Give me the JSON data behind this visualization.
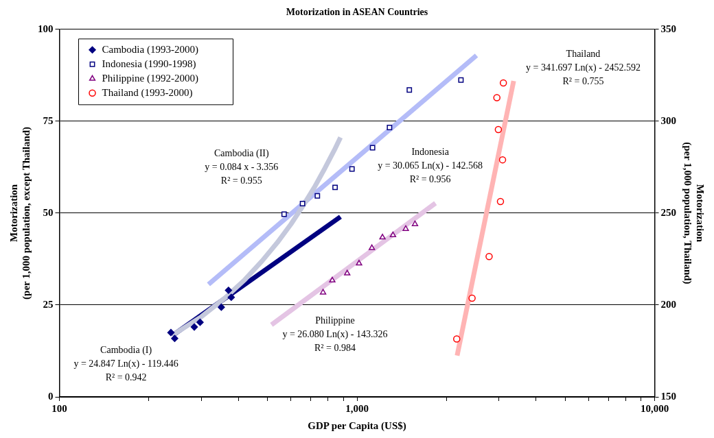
{
  "chart_data": {
    "type": "scatter",
    "title": "Motorization in ASEAN Countries",
    "xlabel": "GDP per Capita (US$)",
    "ylabel": "Motorization\n(per 1,000 population, except Thailand)",
    "y2label": "Motorization\n(per 1,000 population, Thailand)",
    "log": "x",
    "grid": "y",
    "legend": "top left",
    "xlim": [
      100,
      10000
    ],
    "xticks": [
      {
        "value": 100,
        "label": "100"
      },
      {
        "value": 200,
        "label": null
      },
      {
        "value": 300,
        "label": null
      },
      {
        "value": 400,
        "label": null
      },
      {
        "value": 500,
        "label": null
      },
      {
        "value": 600,
        "label": null
      },
      {
        "value": 700,
        "label": null
      },
      {
        "value": 800,
        "label": null
      },
      {
        "value": 900,
        "label": null
      },
      {
        "value": 1000,
        "label": "1,000"
      },
      {
        "value": 2000,
        "label": null
      },
      {
        "value": 3000,
        "label": null
      },
      {
        "value": 4000,
        "label": null
      },
      {
        "value": 5000,
        "label": null
      },
      {
        "value": 6000,
        "label": null
      },
      {
        "value": 7000,
        "label": null
      },
      {
        "value": 8000,
        "label": null
      },
      {
        "value": 9000,
        "label": null
      },
      {
        "value": 10000,
        "label": "10,000"
      }
    ],
    "ylim": [
      0,
      100
    ],
    "yticks": [
      0,
      25,
      50,
      75,
      100
    ],
    "y2lim": [
      150,
      350
    ],
    "y2ticks": [
      150,
      200,
      250,
      300,
      350
    ],
    "series": [
      {
        "type": "line",
        "color": "#c4c8dc",
        "marker": "none",
        "x": [
          240,
          300,
          360,
          420,
          480,
          540,
          600,
          660,
          720,
          780,
          840,
          880
        ],
        "values": [
          16.8,
          21.8,
          26.9,
          31.9,
          37.0,
          42.0,
          47.0,
          52.1,
          57.1,
          62.2,
          67.2,
          70.6
        ]
      },
      {
        "type": "line",
        "color": "#b4bcf8",
        "marker": "none",
        "x": [
          317,
          2520
        ],
        "values": [
          30.6,
          92.9
        ]
      },
      {
        "type": "line",
        "color": "#e4c4e4",
        "marker": "none",
        "x": [
          516,
          1835
        ],
        "values": [
          19.6,
          52.7
        ]
      },
      {
        "type": "line",
        "color": "#ffb4b4",
        "marker": "none",
        "axis": "y2",
        "x": [
          2170,
          3360
        ],
        "values": [
          172.5,
          321.9
        ]
      },
      {
        "type": "line",
        "color": "#000080",
        "marker": "none",
        "x": [
          240,
          880
        ],
        "values": [
          16.7,
          49.0
        ]
      },
      {
        "type": "scatter",
        "name": "Cambodia (1993-2000)",
        "color": "#000080",
        "marker": "diamond",
        "x": [
          237,
          244,
          284,
          297,
          350,
          370,
          378
        ],
        "values": [
          17.5,
          15.9,
          19.0,
          20.3,
          24.4,
          29.0,
          27.1
        ]
      },
      {
        "type": "scatter",
        "name": "Indonesia (1990-1998)",
        "color": "#000080",
        "marker": "square",
        "x": [
          569,
          656,
          736,
          844,
          962,
          1128,
          1286,
          1499,
          2235
        ],
        "values": [
          49.7,
          52.6,
          54.7,
          57.0,
          62.0,
          67.8,
          73.3,
          83.5,
          86.2
        ]
      },
      {
        "type": "scatter",
        "name": "Philippine (1992-2000)",
        "color": "#800080",
        "marker": "triangle",
        "x": [
          769,
          826,
          927,
          1016,
          1122,
          1218,
          1321,
          1458,
          1566
        ],
        "values": [
          28.4,
          31.7,
          33.6,
          36.3,
          40.5,
          43.4,
          44.0,
          45.7,
          47.0
        ]
      },
      {
        "type": "scatter",
        "name": "Thailand (1993-2000)",
        "color": "#ff0000",
        "marker": "circle",
        "axis": "y2",
        "x": [
          2163,
          2436,
          2779,
          3034,
          3084,
          2985,
          2951,
          3103
        ],
        "values": [
          181.5,
          203.7,
          226.4,
          256.3,
          279.0,
          295.5,
          312.8,
          320.8
        ]
      }
    ],
    "annotations": [
      "Cambodia (II)\ny = 0.084 x - 3.356\nR² = 0.955",
      "Cambodia (I)\ny = 24.847 Ln(x) - 119.446\nR² = 0.942",
      "Indonesia\ny = 30.065 Ln(x) - 142.568\nR² = 0.956",
      "Philippine\ny = 26.080 Ln(x) - 143.326\nR² = 0.984",
      "Thailand\ny = 341.697 Ln(x) - 2452.592\nR² = 0.755"
    ]
  }
}
